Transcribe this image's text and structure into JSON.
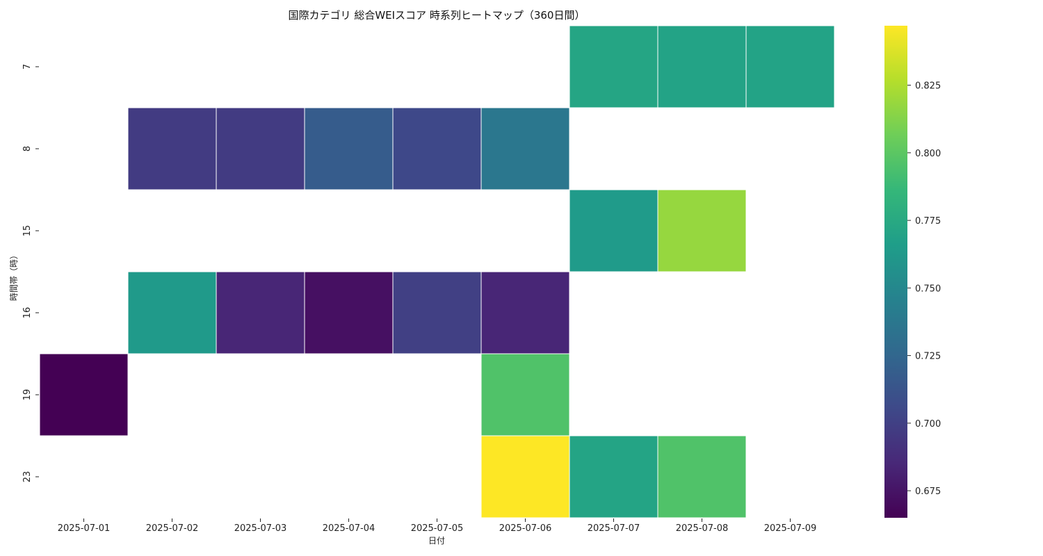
{
  "chart_data": {
    "type": "heatmap",
    "title": "国際カテゴリ 総合WEIスコア 時系列ヒートマップ（360日間）",
    "xlabel": "日付",
    "ylabel": "時間帯（時）",
    "x": [
      "2025-07-01",
      "2025-07-02",
      "2025-07-03",
      "2025-07-04",
      "2025-07-05",
      "2025-07-06",
      "2025-07-07",
      "2025-07-08",
      "2025-07-09"
    ],
    "y": [
      "7",
      "8",
      "15",
      "16",
      "19",
      "23"
    ],
    "values": [
      [
        null,
        null,
        null,
        null,
        null,
        null,
        0.772,
        0.77,
        0.77
      ],
      [
        null,
        0.697,
        0.697,
        0.718,
        0.705,
        0.737,
        null,
        null,
        null
      ],
      [
        null,
        null,
        null,
        null,
        null,
        null,
        0.764,
        0.818,
        null
      ],
      [
        null,
        0.763,
        0.684,
        0.673,
        0.7,
        0.684,
        null,
        null,
        null
      ],
      [
        0.665,
        null,
        null,
        null,
        null,
        0.796,
        null,
        null,
        null
      ],
      [
        null,
        null,
        null,
        null,
        null,
        0.847,
        0.771,
        0.796,
        null
      ]
    ],
    "colormap": "viridis",
    "colorbar": {
      "range": [
        0.665,
        0.847
      ],
      "ticks": [
        "0.675",
        "0.700",
        "0.725",
        "0.750",
        "0.775",
        "0.800",
        "0.825"
      ]
    }
  }
}
